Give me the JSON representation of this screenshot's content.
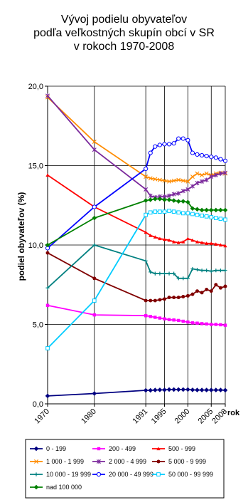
{
  "chart_data": {
    "type": "line",
    "title_lines": [
      "Vývoj podielu obyvateľov",
      "podľa veľkostných skupín obcí v SR",
      "v rokoch 1970-2008"
    ],
    "ylabel": "podiel obyvateľov (%)",
    "xlabel": "rok",
    "ylim": [
      0,
      20
    ],
    "yticks": [
      "0,0",
      "5,0",
      "10,0",
      "15,0",
      "20,0"
    ],
    "xlim": [
      1970,
      2008
    ],
    "xticks": [
      "1970",
      "1980",
      "1991",
      "1995",
      "2000",
      "2005",
      "2008"
    ],
    "legend_position": "bottom",
    "x": [
      1970,
      1980,
      1991,
      1992,
      1993,
      1994,
      1995,
      1996,
      1997,
      1998,
      1999,
      2000,
      2001,
      2002,
      2003,
      2004,
      2005,
      2006,
      2007,
      2008
    ],
    "series": [
      {
        "name": "0 - 199",
        "color": "#000080",
        "marker": "diamond",
        "values": [
          0.5,
          0.65,
          0.85,
          0.85,
          0.87,
          0.88,
          0.88,
          0.9,
          0.9,
          0.9,
          0.9,
          0.9,
          0.88,
          0.87,
          0.87,
          0.87,
          0.87,
          0.87,
          0.87,
          0.86
        ]
      },
      {
        "name": "200 - 499",
        "color": "#ff00ff",
        "marker": "square",
        "values": [
          6.2,
          5.6,
          5.55,
          5.5,
          5.45,
          5.4,
          5.35,
          5.3,
          5.28,
          5.25,
          5.2,
          5.15,
          5.1,
          5.08,
          5.05,
          5.03,
          5.0,
          5.0,
          4.98,
          4.95
        ]
      },
      {
        "name": "500 - 999",
        "color": "#ff0000",
        "marker": "triangle",
        "values": [
          14.4,
          12.4,
          10.8,
          10.6,
          10.5,
          10.4,
          10.35,
          10.3,
          10.2,
          10.15,
          10.2,
          10.4,
          10.3,
          10.2,
          10.15,
          10.1,
          10.1,
          10.05,
          10.0,
          9.95
        ]
      },
      {
        "name": "1 000 - 1 999",
        "color": "#ff8c00",
        "marker": "x",
        "values": [
          19.3,
          16.5,
          14.3,
          14.2,
          14.15,
          14.1,
          14.05,
          14.0,
          14.05,
          14.1,
          14.05,
          14.0,
          14.3,
          14.5,
          14.4,
          14.5,
          14.4,
          14.5,
          14.55,
          14.5
        ]
      },
      {
        "name": "2 000 - 4 999",
        "color": "#7b2a9c",
        "marker": "star",
        "values": [
          19.4,
          16.0,
          13.5,
          13.1,
          13.0,
          13.05,
          13.05,
          13.1,
          13.2,
          13.25,
          13.4,
          13.5,
          13.7,
          13.9,
          14.0,
          14.1,
          14.3,
          14.4,
          14.5,
          14.55
        ]
      },
      {
        "name": "5 000 - 9 999",
        "color": "#800000",
        "marker": "circle",
        "values": [
          9.5,
          7.9,
          6.5,
          6.5,
          6.5,
          6.55,
          6.6,
          6.7,
          6.7,
          6.7,
          6.75,
          6.8,
          6.9,
          7.1,
          7.0,
          7.2,
          7.1,
          7.5,
          7.3,
          7.4
        ]
      },
      {
        "name": "10 000 - 19 999",
        "color": "#008080",
        "marker": "plus",
        "values": [
          7.3,
          10.0,
          9.0,
          8.3,
          8.2,
          8.2,
          8.2,
          8.2,
          8.2,
          7.9,
          7.9,
          7.9,
          8.5,
          8.45,
          8.4,
          8.4,
          8.35,
          8.4,
          8.4,
          8.4
        ]
      },
      {
        "name": "20 000 - 49 999",
        "color": "#0000ff",
        "marker": "circle-open",
        "values": [
          9.8,
          12.4,
          14.8,
          15.8,
          16.2,
          16.3,
          16.35,
          16.35,
          16.4,
          16.7,
          16.7,
          16.6,
          15.8,
          15.7,
          15.65,
          15.6,
          15.55,
          15.5,
          15.4,
          15.3
        ]
      },
      {
        "name": "50 000 - 99 999",
        "color": "#00ccff",
        "marker": "square-open",
        "values": [
          3.5,
          6.5,
          11.9,
          12.05,
          12.1,
          12.1,
          12.1,
          12.15,
          12.1,
          12.05,
          12.0,
          12.0,
          11.95,
          11.9,
          11.85,
          11.8,
          11.75,
          11.7,
          11.65,
          11.6
        ]
      },
      {
        "name": "nad 100 000",
        "color": "#008000",
        "marker": "diamond",
        "values": [
          10.0,
          11.7,
          12.8,
          12.85,
          12.9,
          12.9,
          12.85,
          12.85,
          12.8,
          12.75,
          12.75,
          12.7,
          12.3,
          12.25,
          12.2,
          12.2,
          12.2,
          12.2,
          12.2,
          12.2
        ]
      }
    ]
  }
}
